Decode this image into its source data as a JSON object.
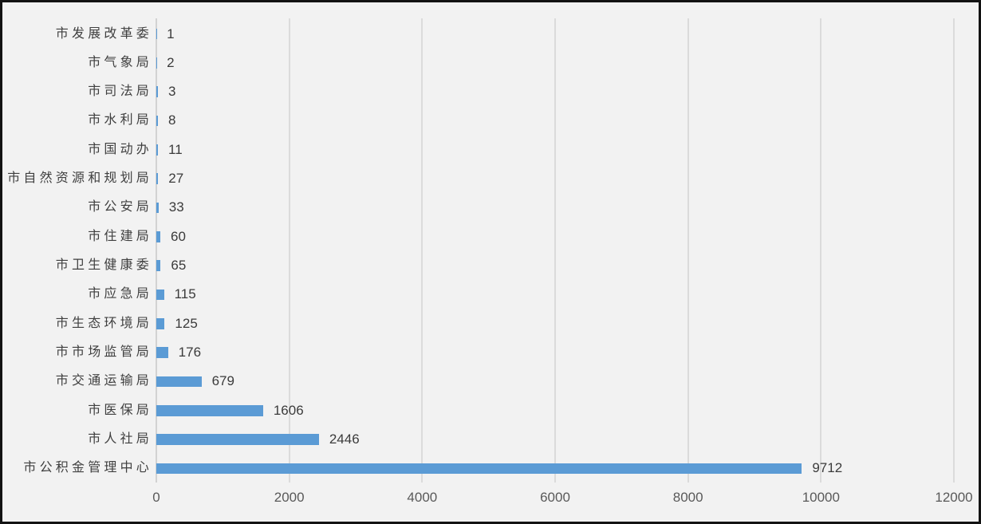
{
  "chart_data": {
    "type": "bar",
    "orientation": "horizontal",
    "title": "",
    "xlabel": "",
    "ylabel": "",
    "categories": [
      "市发展改革委",
      "市气象局",
      "市司法局",
      "市水利局",
      "市国动办",
      "市自然资源和规划局",
      "市公安局",
      "市住建局",
      "市卫生健康委",
      "市应急局",
      "市生态环境局",
      "市市场监管局",
      "市交通运输局",
      "市医保局",
      "市人社局",
      "市公积金管理中心"
    ],
    "values": [
      1,
      2,
      3,
      8,
      11,
      27,
      33,
      60,
      65,
      115,
      125,
      176,
      679,
      1606,
      2446,
      9712
    ],
    "data_labels": [
      "1",
      "2",
      "3",
      "8",
      "11",
      "27",
      "33",
      "60",
      "65",
      "115",
      "125",
      "176",
      "679",
      "1606",
      "2446",
      "9712"
    ],
    "xlim": [
      0,
      12000
    ],
    "x_ticks": [
      0,
      2000,
      4000,
      6000,
      8000,
      10000,
      12000
    ],
    "x_tick_labels": [
      "0",
      "2000",
      "4000",
      "6000",
      "8000",
      "10000",
      "12000"
    ],
    "grid": true,
    "legend": false,
    "colors": {
      "bar": "#5B9BD5",
      "background": "#F2F2F2",
      "frame_border": "#131313",
      "gridline": "#DBDBDB",
      "axis_line": "#D2D2D2",
      "category_label": "#3F3F3F",
      "value_label": "#3B3B3B",
      "tick_label": "#595959"
    }
  }
}
